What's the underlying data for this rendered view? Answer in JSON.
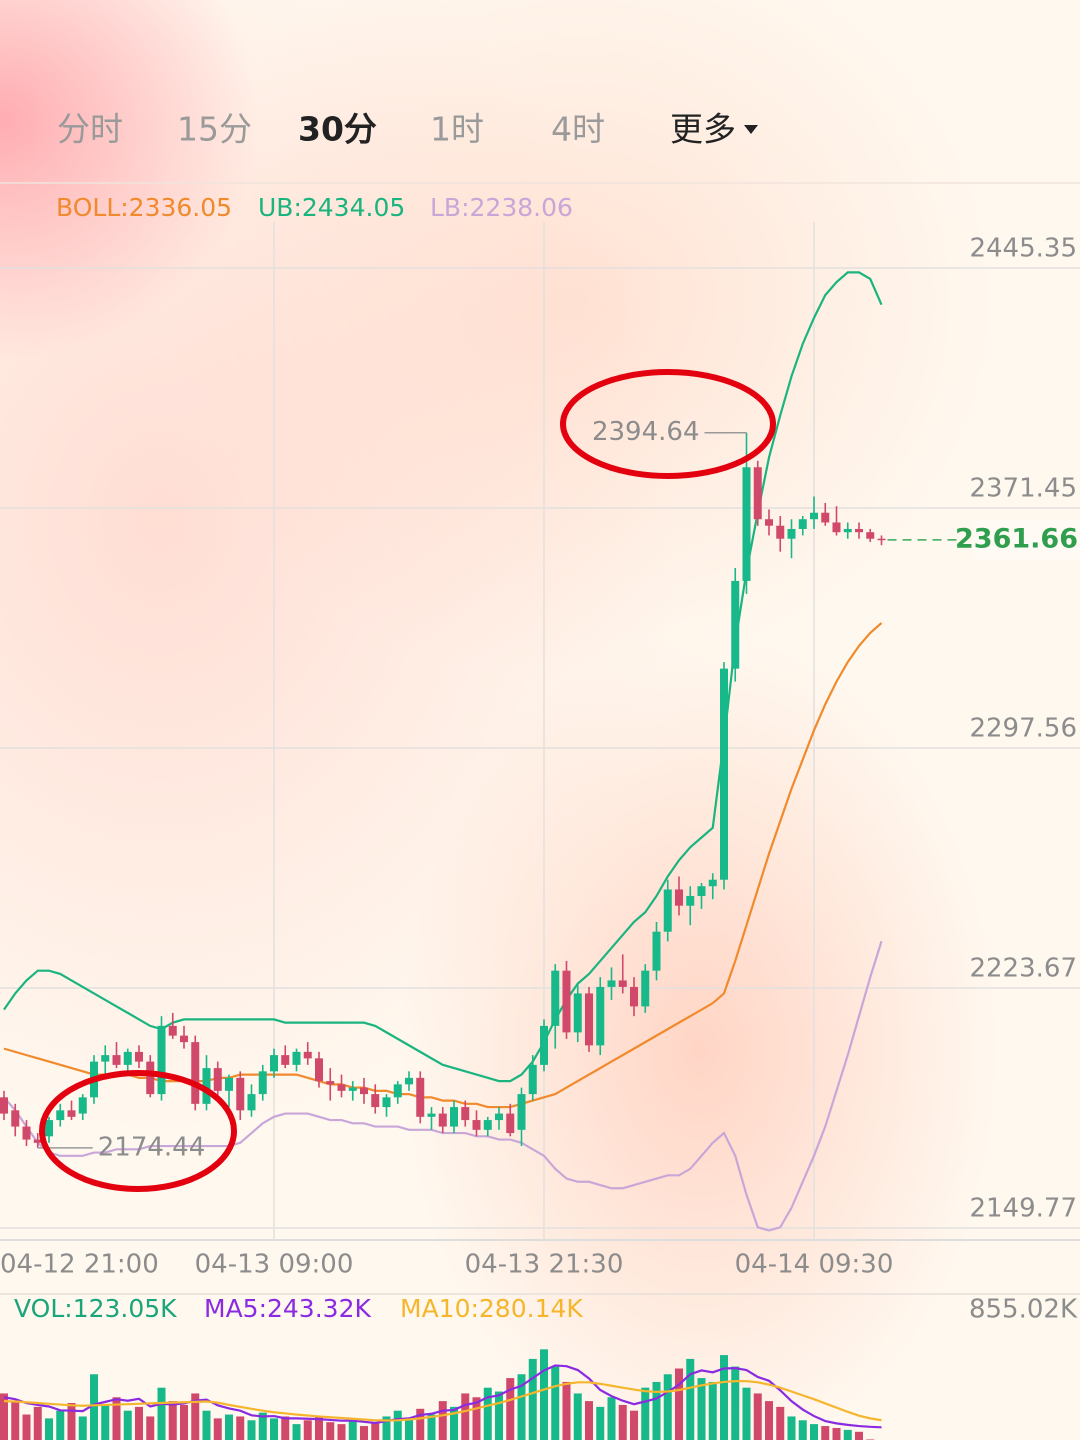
{
  "tabs": [
    "分时",
    "15分",
    "30分",
    "1时",
    "4时",
    "更多"
  ],
  "chart_data": [
    {
      "type": "candlestick",
      "categories": [
        "04-12 21:00",
        null,
        null,
        null,
        null,
        null,
        null,
        null,
        null,
        null,
        null,
        null,
        null,
        null,
        null,
        null,
        null,
        null,
        null,
        null,
        null,
        null,
        null,
        null,
        "04-13 09:00",
        null,
        null,
        null,
        null,
        null,
        null,
        null,
        null,
        null,
        null,
        null,
        null,
        null,
        null,
        null,
        null,
        null,
        null,
        null,
        null,
        null,
        null,
        null,
        "04-13 21:30",
        null,
        null,
        null,
        null,
        null,
        null,
        null,
        null,
        null,
        null,
        null,
        null,
        null,
        null,
        null,
        null,
        null,
        null,
        null,
        null,
        null,
        null,
        null,
        "04-14 09:30",
        null,
        null,
        null,
        null,
        null,
        null
      ],
      "ohlc": [
        [
          2190,
          2192,
          2183,
          2185
        ],
        [
          2186,
          2188,
          2178,
          2181
        ],
        [
          2181,
          2183,
          2175,
          2177
        ],
        [
          2177,
          2179,
          2174.44,
          2176
        ],
        [
          2178,
          2184,
          2176,
          2183
        ],
        [
          2183,
          2188,
          2181,
          2186
        ],
        [
          2186,
          2189,
          2183,
          2184
        ],
        [
          2185,
          2191,
          2183,
          2190
        ],
        [
          2190,
          2203,
          2188,
          2201
        ],
        [
          2201,
          2206,
          2197,
          2203
        ],
        [
          2203,
          2207,
          2199,
          2200
        ],
        [
          2200,
          2205,
          2198,
          2204
        ],
        [
          2204,
          2206,
          2199,
          2201
        ],
        [
          2201,
          2203,
          2190,
          2191
        ],
        [
          2191,
          2215,
          2189,
          2212
        ],
        [
          2212,
          2216,
          2208,
          2209
        ],
        [
          2209,
          2212,
          2205,
          2207
        ],
        [
          2207,
          2209,
          2186,
          2188
        ],
        [
          2188,
          2203,
          2186,
          2199
        ],
        [
          2199,
          2201,
          2190,
          2192
        ],
        [
          2192,
          2197,
          2187,
          2196
        ],
        [
          2196,
          2198,
          2183,
          2186
        ],
        [
          2186,
          2194,
          2184,
          2191
        ],
        [
          2191,
          2200,
          2189,
          2198
        ],
        [
          2198,
          2205,
          2196,
          2203
        ],
        [
          2203,
          2206,
          2199,
          2200
        ],
        [
          2200,
          2205,
          2198,
          2204
        ],
        [
          2204,
          2207,
          2200,
          2202
        ],
        [
          2202,
          2204,
          2193,
          2195
        ],
        [
          2195,
          2199,
          2189,
          2194
        ],
        [
          2194,
          2197,
          2190,
          2192
        ],
        [
          2192,
          2195,
          2189,
          2193
        ],
        [
          2193,
          2196,
          2188,
          2191
        ],
        [
          2191,
          2194,
          2185,
          2187
        ],
        [
          2187,
          2191,
          2184,
          2190
        ],
        [
          2190,
          2195,
          2188,
          2194
        ],
        [
          2194,
          2198,
          2192,
          2196
        ],
        [
          2196,
          2198,
          2182,
          2184
        ],
        [
          2184,
          2187,
          2180,
          2185
        ],
        [
          2185,
          2187,
          2179,
          2181
        ],
        [
          2181,
          2189,
          2179,
          2187
        ],
        [
          2187,
          2189,
          2181,
          2183
        ],
        [
          2183,
          2186,
          2178,
          2180
        ],
        [
          2180,
          2184,
          2178,
          2183
        ],
        [
          2183,
          2187,
          2180,
          2185
        ],
        [
          2185,
          2188,
          2178,
          2179
        ],
        [
          2180,
          2193,
          2175,
          2191
        ],
        [
          2191,
          2203,
          2189,
          2200
        ],
        [
          2200,
          2214,
          2198,
          2212
        ],
        [
          2212,
          2231,
          2205,
          2229
        ],
        [
          2229,
          2232,
          2208,
          2210
        ],
        [
          2210,
          2225,
          2207,
          2222
        ],
        [
          2222,
          2224,
          2204,
          2206
        ],
        [
          2206,
          2227,
          2203,
          2224
        ],
        [
          2224,
          2230,
          2220,
          2226
        ],
        [
          2226,
          2234,
          2222,
          2224
        ],
        [
          2224,
          2227,
          2215,
          2218
        ],
        [
          2218,
          2231,
          2216,
          2229
        ],
        [
          2229,
          2244,
          2226,
          2241
        ],
        [
          2241,
          2257,
          2238,
          2254
        ],
        [
          2254,
          2258,
          2246,
          2249
        ],
        [
          2249,
          2255,
          2243,
          2252
        ],
        [
          2252,
          2256,
          2248,
          2255
        ],
        [
          2255,
          2259,
          2251,
          2257
        ],
        [
          2257,
          2324,
          2254,
          2322
        ],
        [
          2322,
          2353,
          2318,
          2349
        ],
        [
          2349,
          2394.64,
          2345,
          2384
        ],
        [
          2384,
          2386,
          2366,
          2368
        ],
        [
          2368,
          2371,
          2363,
          2366
        ],
        [
          2366,
          2369,
          2358,
          2362
        ],
        [
          2362,
          2368,
          2356,
          2365
        ],
        [
          2365,
          2369,
          2363,
          2368
        ],
        [
          2368,
          2375,
          2365,
          2370
        ],
        [
          2370,
          2373,
          2366,
          2367
        ],
        [
          2367,
          2372,
          2363,
          2364
        ],
        [
          2364,
          2367,
          2362,
          2365
        ],
        [
          2365,
          2367,
          2362,
          2364
        ],
        [
          2364,
          2365,
          2361,
          2362
        ],
        [
          2362,
          2363,
          2360,
          2361.66
        ]
      ],
      "up_color": "#17b889",
      "down_color": "#d0486a",
      "series": [
        {
          "name": "BOLL:2336.05",
          "color": "#f08a2c",
          "values": [
            2205,
            2204,
            2203,
            2202,
            2201,
            2200,
            2199,
            2198,
            2197,
            2197,
            2197,
            2197,
            2196,
            2196,
            2195,
            2195,
            2195,
            2195,
            2195,
            2196,
            2196,
            2197,
            2197,
            2197,
            2197,
            2197,
            2197,
            2196,
            2195,
            2194,
            2194,
            2193,
            2193,
            2192,
            2192,
            2191,
            2191,
            2190,
            2190,
            2189,
            2189,
            2188,
            2188,
            2187,
            2187,
            2187,
            2188,
            2189,
            2190,
            2191,
            2193,
            2195,
            2197,
            2199,
            2201,
            2203,
            2205,
            2207,
            2209,
            2211,
            2213,
            2215,
            2217,
            2219,
            2222,
            2232,
            2243,
            2254,
            2265,
            2275,
            2285,
            2294,
            2303,
            2311,
            2318,
            2324,
            2329,
            2333,
            2336.05
          ]
        },
        {
          "name": "UB:2434.05",
          "color": "#1ab47f",
          "values": [
            2217,
            2222,
            2226,
            2229,
            2229,
            2228,
            2226,
            2224,
            2222,
            2220,
            2218,
            2216,
            2214,
            2212,
            2211,
            2213,
            2214,
            2214,
            2214,
            2214,
            2214,
            2214,
            2214,
            2214,
            2214,
            2213,
            2213,
            2213,
            2213,
            2213,
            2213,
            2213,
            2213,
            2212,
            2210,
            2208,
            2206,
            2204,
            2202,
            2200,
            2199,
            2198,
            2197,
            2196,
            2195,
            2195,
            2197,
            2201,
            2207,
            2214,
            2220,
            2225,
            2228,
            2232,
            2236,
            2240,
            2244,
            2247,
            2252,
            2258,
            2263,
            2267,
            2270,
            2273,
            2300,
            2330,
            2352,
            2370,
            2387,
            2400,
            2412,
            2422,
            2430,
            2437,
            2441,
            2444,
            2444,
            2442,
            2434.05
          ]
        },
        {
          "name": "LB:2238.06",
          "color": "#c9a6d8",
          "values": [
            2190,
            2186,
            2181,
            2176,
            2173,
            2172,
            2172,
            2172,
            2173,
            2173,
            2174,
            2174,
            2174,
            2175,
            2175,
            2175,
            2175,
            2175,
            2175,
            2175,
            2175,
            2176,
            2179,
            2182,
            2184,
            2185,
            2185,
            2185,
            2184,
            2183,
            2183,
            2182,
            2182,
            2181,
            2181,
            2181,
            2180,
            2180,
            2180,
            2179,
            2179,
            2179,
            2178,
            2178,
            2177,
            2177,
            2176,
            2174,
            2172,
            2168,
            2165,
            2164,
            2164,
            2163,
            2162,
            2162,
            2163,
            2164,
            2165,
            2166,
            2166,
            2168,
            2172,
            2176,
            2179,
            2172,
            2160,
            2150,
            2149,
            2150,
            2156,
            2164,
            2172,
            2181,
            2192,
            2203,
            2215,
            2227,
            2238.06
          ]
        }
      ],
      "ylim": [
        2149.77,
        2445.35
      ],
      "yticks": [
        2149.77,
        2223.67,
        2297.56,
        2371.45,
        2445.35
      ],
      "grid": true
    },
    {
      "type": "bar",
      "series": [
        {
          "name": "VOL:123.05K",
          "color": "#1aa57a",
          "values": [
            420,
            380,
            310,
            350,
            290,
            330,
            370,
            300,
            520,
            360,
            400,
            330,
            350,
            300,
            450,
            380,
            360,
            420,
            330,
            290,
            310,
            300,
            280,
            320,
            290,
            300,
            260,
            280,
            300,
            270,
            260,
            280,
            250,
            270,
            300,
            330,
            290,
            340,
            310,
            380,
            350,
            420,
            400,
            450,
            430,
            500,
            520,
            600,
            650,
            560,
            480,
            420,
            380,
            350,
            400,
            360,
            330,
            450,
            480,
            520,
            550,
            600,
            500,
            480,
            620,
            560,
            450,
            420,
            380,
            350,
            300,
            280,
            260,
            250,
            240,
            230,
            220,
            180,
            123.05
          ]
        },
        {
          "name": "MA5:243.32K",
          "color": "#8a2be2",
          "values": [
            400,
            390,
            370,
            360,
            352,
            332,
            330,
            328,
            362,
            376,
            390,
            382,
            392,
            352,
            366,
            362,
            368,
            382,
            388,
            358,
            342,
            330,
            306,
            300,
            302,
            290,
            290,
            288,
            286,
            282,
            278,
            278,
            272,
            266,
            276,
            286,
            290,
            308,
            314,
            330,
            334,
            360,
            372,
            400,
            410,
            440,
            460,
            500,
            540,
            566,
            562,
            542,
            498,
            438,
            406,
            382,
            364,
            378,
            394,
            428,
            466,
            520,
            540,
            530,
            550,
            552,
            542,
            506,
            486,
            436,
            380,
            336,
            302,
            276,
            264,
            256,
            250,
            246,
            243.32
          ]
        },
        {
          "name": "MA10:280.14K",
          "color": "#f5b62e",
          "values": [
            380,
            378,
            374,
            370,
            366,
            362,
            358,
            356,
            358,
            360,
            362,
            364,
            366,
            368,
            370,
            372,
            374,
            376,
            378,
            372,
            360,
            350,
            340,
            330,
            322,
            316,
            310,
            305,
            300,
            296,
            292,
            288,
            284,
            280,
            279,
            280,
            284,
            290,
            298,
            306,
            316,
            328,
            342,
            356,
            370,
            386,
            404,
            422,
            440,
            458,
            470,
            478,
            478,
            470,
            460,
            450,
            440,
            432,
            428,
            430,
            438,
            450,
            462,
            472,
            480,
            484,
            484,
            478,
            466,
            450,
            430,
            410,
            390,
            368,
            346,
            324,
            304,
            290,
            280.14
          ]
        }
      ],
      "ylim": [
        0,
        855.02
      ],
      "yticks": [
        {
          "value": 855.02,
          "label": "855.02K"
        }
      ]
    }
  ]
}
